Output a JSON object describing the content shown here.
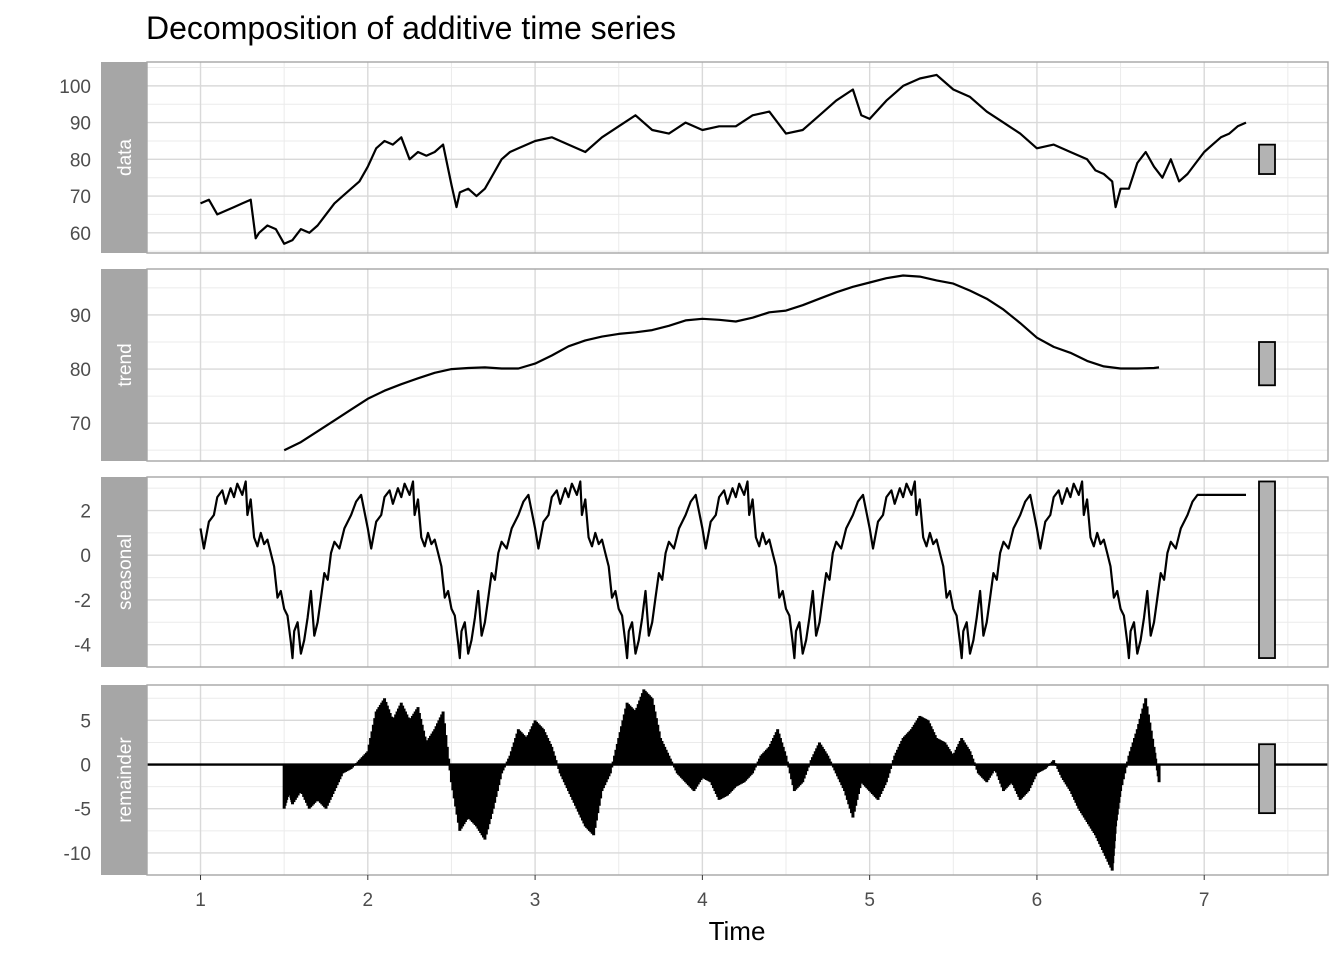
{
  "chart_data": {
    "type": "line",
    "title": "Decomposition of additive time series",
    "xlabel": "Time",
    "x_ticks": [
      "1",
      "2",
      "3",
      "4",
      "5",
      "6",
      "7"
    ],
    "xlim": [
      0.68,
      7.74
    ],
    "grid": true,
    "series_color": "#000000",
    "strip_color": "#a6a6a6",
    "range_bar_color": "#b3b3b3",
    "panels": [
      {
        "name": "data",
        "ylim": [
          54.5,
          106.5
        ],
        "y_ticks": [
          60,
          70,
          80,
          90,
          100
        ],
        "y_tick_labels": [
          "60",
          "70",
          "80",
          "90",
          "100"
        ],
        "range_bar": [
          76,
          84
        ],
        "x": [
          1.0,
          1.05,
          1.1,
          1.15,
          1.2,
          1.25,
          1.3,
          1.33,
          1.35,
          1.4,
          1.45,
          1.5,
          1.55,
          1.6,
          1.65,
          1.7,
          1.75,
          1.8,
          1.85,
          1.9,
          1.95,
          2.0,
          2.05,
          2.1,
          2.15,
          2.2,
          2.25,
          2.3,
          2.35,
          2.4,
          2.45,
          2.5,
          2.53,
          2.55,
          2.6,
          2.65,
          2.7,
          2.75,
          2.8,
          2.85,
          2.9,
          3.0,
          3.1,
          3.2,
          3.3,
          3.4,
          3.5,
          3.6,
          3.7,
          3.8,
          3.9,
          4.0,
          4.1,
          4.2,
          4.3,
          4.4,
          4.5,
          4.6,
          4.7,
          4.8,
          4.9,
          4.95,
          5.0,
          5.1,
          5.2,
          5.3,
          5.4,
          5.5,
          5.6,
          5.7,
          5.8,
          5.9,
          6.0,
          6.1,
          6.2,
          6.3,
          6.35,
          6.4,
          6.45,
          6.47,
          6.5,
          6.55,
          6.6,
          6.65,
          6.7,
          6.75,
          6.8,
          6.85,
          6.9,
          6.95,
          7.0,
          7.05,
          7.1,
          7.15,
          7.2,
          7.25
        ],
        "y": [
          68,
          69,
          65,
          66,
          67,
          68,
          69,
          58.5,
          60,
          62,
          61,
          57,
          58,
          61,
          60,
          62,
          65,
          68,
          70,
          72,
          74,
          78,
          83,
          85,
          84,
          86,
          80,
          82,
          81,
          82,
          84,
          73,
          67,
          71,
          72,
          70,
          72,
          76,
          80,
          82,
          83,
          85,
          86,
          84,
          82,
          86,
          89,
          92,
          88,
          87,
          90,
          88,
          89,
          89,
          92,
          93,
          87,
          88,
          92,
          96,
          99,
          92,
          91,
          96,
          100,
          102,
          103,
          99,
          97,
          93,
          90,
          87,
          83,
          84,
          82,
          80,
          77,
          76,
          74,
          67,
          72,
          72,
          79,
          82,
          78,
          75,
          80,
          74,
          76,
          79,
          82,
          84,
          86,
          87,
          89,
          90
        ]
      },
      {
        "name": "trend",
        "ylim": [
          63,
          98.5
        ],
        "y_ticks": [
          70,
          80,
          90
        ],
        "y_tick_labels": [
          "70",
          "80",
          "90"
        ],
        "range_bar": [
          77,
          85
        ],
        "x": [
          1.5,
          1.6,
          1.7,
          1.8,
          1.9,
          2.0,
          2.1,
          2.2,
          2.3,
          2.4,
          2.5,
          2.6,
          2.7,
          2.8,
          2.9,
          3.0,
          3.1,
          3.2,
          3.3,
          3.4,
          3.5,
          3.6,
          3.7,
          3.8,
          3.9,
          4.0,
          4.1,
          4.2,
          4.3,
          4.4,
          4.5,
          4.6,
          4.7,
          4.8,
          4.9,
          5.0,
          5.1,
          5.2,
          5.3,
          5.4,
          5.5,
          5.6,
          5.7,
          5.8,
          5.9,
          6.0,
          6.1,
          6.2,
          6.3,
          6.4,
          6.5,
          6.6,
          6.7,
          6.73
        ],
        "y": [
          65,
          66.5,
          68.5,
          70.5,
          72.5,
          74.5,
          76,
          77.2,
          78.3,
          79.3,
          80,
          80.2,
          80.3,
          80.1,
          80.1,
          81,
          82.5,
          84.2,
          85.3,
          86,
          86.5,
          86.8,
          87.2,
          88,
          89,
          89.3,
          89.1,
          88.8,
          89.5,
          90.5,
          90.8,
          91.8,
          93,
          94.2,
          95.2,
          96,
          96.8,
          97.3,
          97.1,
          96.4,
          95.8,
          94.5,
          93,
          91,
          88.5,
          85.8,
          84.1,
          83,
          81.5,
          80.5,
          80.1,
          80.1,
          80.2,
          80.3
        ]
      },
      {
        "name": "seasonal",
        "ylim": [
          -5.0,
          3.5
        ],
        "y_ticks": [
          -4,
          -2,
          0,
          2
        ],
        "y_tick_labels": [
          "-4",
          "-2",
          "0",
          "2"
        ],
        "range_bar": [
          -4.6,
          3.3
        ],
        "x": [
          1.0,
          1.02,
          1.05,
          1.08,
          1.1,
          1.13,
          1.15,
          1.18,
          1.2,
          1.22,
          1.25,
          1.27,
          1.28,
          1.3,
          1.32,
          1.34,
          1.36,
          1.38,
          1.4,
          1.42,
          1.44,
          1.46,
          1.48,
          1.5,
          1.52,
          1.54,
          1.55,
          1.56,
          1.58,
          1.6,
          1.62,
          1.64,
          1.66,
          1.68,
          1.7,
          1.72,
          1.74,
          1.76,
          1.78,
          1.8,
          1.83,
          1.86,
          1.9,
          1.93,
          1.96
        ],
        "y": [
          1.2,
          0.3,
          1.5,
          1.8,
          2.6,
          2.9,
          2.3,
          3.0,
          2.6,
          3.2,
          2.7,
          3.3,
          1.8,
          2.5,
          0.8,
          0.4,
          1.0,
          0.5,
          0.7,
          0.1,
          -0.5,
          -1.9,
          -1.6,
          -2.4,
          -2.7,
          -3.9,
          -4.6,
          -3.4,
          -3.0,
          -4.4,
          -3.8,
          -2.8,
          -1.6,
          -3.6,
          -3.0,
          -1.9,
          -0.8,
          -1.1,
          0.1,
          0.6,
          0.3,
          1.2,
          1.8,
          2.4,
          2.7
        ],
        "period": 1,
        "cycles": 6,
        "end": 7.25
      },
      {
        "name": "remainder",
        "ylim": [
          -12.5,
          9
        ],
        "y_ticks": [
          -10,
          -5,
          0,
          5
        ],
        "y_tick_labels": [
          "-10",
          "-5",
          "0",
          "5"
        ],
        "range_bar": [
          -5.5,
          2.3
        ],
        "x": [
          1.5,
          1.53,
          1.55,
          1.6,
          1.65,
          1.7,
          1.75,
          1.8,
          1.85,
          1.9,
          1.95,
          2.0,
          2.05,
          2.1,
          2.15,
          2.2,
          2.25,
          2.3,
          2.35,
          2.4,
          2.45,
          2.5,
          2.55,
          2.6,
          2.65,
          2.7,
          2.75,
          2.8,
          2.85,
          2.9,
          2.95,
          3.0,
          3.05,
          3.1,
          3.15,
          3.2,
          3.25,
          3.3,
          3.35,
          3.4,
          3.45,
          3.5,
          3.55,
          3.6,
          3.65,
          3.7,
          3.75,
          3.8,
          3.85,
          3.9,
          3.95,
          4.0,
          4.05,
          4.1,
          4.15,
          4.2,
          4.25,
          4.3,
          4.35,
          4.4,
          4.45,
          4.5,
          4.55,
          4.6,
          4.65,
          4.7,
          4.75,
          4.8,
          4.85,
          4.9,
          4.95,
          5.0,
          5.05,
          5.1,
          5.15,
          5.2,
          5.25,
          5.3,
          5.35,
          5.4,
          5.45,
          5.5,
          5.55,
          5.6,
          5.65,
          5.7,
          5.75,
          5.8,
          5.85,
          5.9,
          5.95,
          6.0,
          6.05,
          6.1,
          6.15,
          6.2,
          6.25,
          6.3,
          6.35,
          6.4,
          6.45,
          6.47,
          6.5,
          6.55,
          6.6,
          6.65,
          6.7,
          6.73
        ],
        "y": [
          -5,
          -3,
          -4.5,
          -3,
          -5,
          -4,
          -5,
          -3,
          -1,
          -0.5,
          0.5,
          1.5,
          6,
          7.5,
          5,
          7,
          5,
          6.5,
          2.5,
          4,
          6,
          -2,
          -7.5,
          -6,
          -7,
          -8.5,
          -5,
          -1,
          1,
          4,
          3,
          5,
          4,
          2,
          -1,
          -3,
          -5,
          -7,
          -8,
          -3,
          -1,
          3,
          7,
          6,
          8.5,
          7.5,
          3,
          1,
          -1,
          -2,
          -3,
          -1.5,
          -2,
          -4,
          -3.5,
          -2.5,
          -2,
          -1,
          1,
          2,
          4,
          1,
          -3,
          -2,
          0.5,
          2.5,
          1,
          -1,
          -3,
          -6,
          -2,
          -3,
          -4,
          -2,
          1,
          3,
          4,
          5.5,
          5,
          3,
          2.5,
          1,
          3,
          1.5,
          -1,
          -2,
          -0.5,
          -3,
          -2,
          -4,
          -3,
          -1,
          -0.5,
          0.5,
          -1.5,
          -3,
          -5,
          -6.5,
          -8,
          -10,
          -12,
          -7,
          -3,
          1,
          4,
          7.5,
          2,
          -2
        ]
      }
    ]
  }
}
